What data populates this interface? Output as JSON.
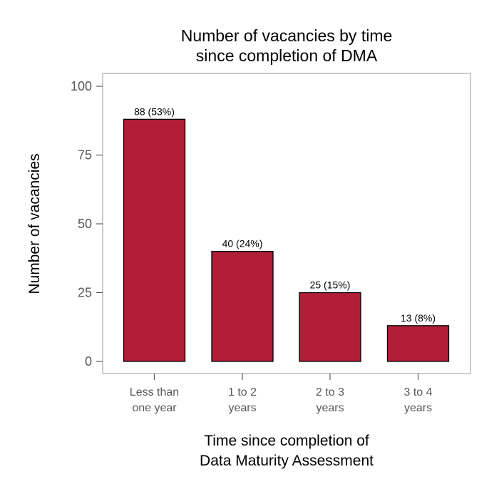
{
  "chart_data": {
    "type": "bar",
    "title_lines": [
      "Number of vacancies by time",
      "since completion of DMA"
    ],
    "xlabel_lines": [
      "Time since completion of",
      "Data Maturity Assessment"
    ],
    "ylabel": "Number of vacancies",
    "categories": [
      [
        "Less than",
        "one year"
      ],
      [
        "1 to 2",
        "years"
      ],
      [
        "2 to 3",
        "years"
      ],
      [
        "3 to 4",
        "years"
      ]
    ],
    "values": [
      88,
      40,
      25,
      13
    ],
    "data_labels": [
      "88 (53%)",
      "40 (24%)",
      "25 (15%)",
      "13 (8%)"
    ],
    "ylim": [
      0,
      100
    ],
    "yticks": [
      0,
      25,
      50,
      75,
      100
    ],
    "bar_color": "#b01f35",
    "bar_edge_color": "#000000",
    "frame_color": "#999999",
    "grid": false,
    "legend": "none"
  }
}
